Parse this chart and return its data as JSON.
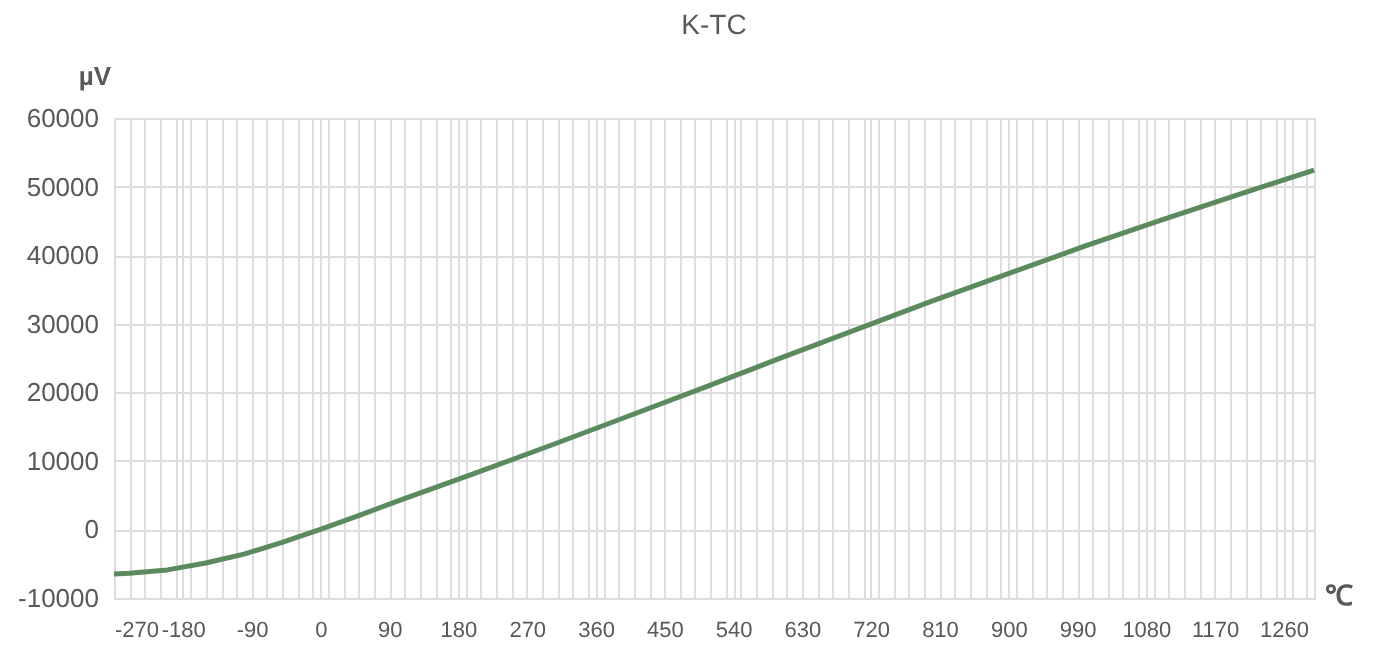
{
  "chart_data": {
    "type": "line",
    "title": "K-TC",
    "xlabel": "℃",
    "ylabel": "µV",
    "x": [
      -270,
      -250,
      -200,
      -150,
      -100,
      -50,
      0,
      50,
      100,
      150,
      200,
      300,
      400,
      500,
      600,
      700,
      800,
      900,
      1000,
      1100,
      1200,
      1300
    ],
    "series": [
      {
        "color": "#5a8a5e",
        "values": [
          -6500,
          -6400,
          -5900,
          -4900,
          -3600,
          -1900,
          0,
          2000,
          4100,
          6100,
          8100,
          12200,
          16400,
          20600,
          24900,
          29100,
          33300,
          37300,
          41300,
          45100,
          48800,
          52400
        ]
      }
    ],
    "xlim": [
      -270,
      1300
    ],
    "xticks": [
      -270,
      {
        "value": -250,
        "label": null
      },
      {
        "value": -230,
        "label": null
      },
      {
        "value": -210,
        "label": null
      },
      {
        "value": -190,
        "label": null
      },
      -180,
      {
        "value": -170,
        "label": null
      },
      {
        "value": -150,
        "label": null
      },
      {
        "value": -130,
        "label": null
      },
      {
        "value": -110,
        "label": null
      },
      -90,
      {
        "value": -70,
        "label": null
      },
      {
        "value": -50,
        "label": null
      },
      {
        "value": -30,
        "label": null
      },
      {
        "value": -10,
        "label": null
      },
      0,
      {
        "value": 10,
        "label": null
      },
      {
        "value": 30,
        "label": null
      },
      {
        "value": 50,
        "label": null
      },
      {
        "value": 70,
        "label": null
      },
      90,
      {
        "value": 110,
        "label": null
      },
      {
        "value": 130,
        "label": null
      },
      {
        "value": 150,
        "label": null
      },
      {
        "value": 170,
        "label": null
      },
      180,
      {
        "value": 190,
        "label": null
      },
      {
        "value": 210,
        "label": null
      },
      {
        "value": 230,
        "label": null
      },
      {
        "value": 250,
        "label": null
      },
      270,
      {
        "value": 290,
        "label": null
      },
      {
        "value": 310,
        "label": null
      },
      {
        "value": 330,
        "label": null
      },
      {
        "value": 350,
        "label": null
      },
      360,
      {
        "value": 370,
        "label": null
      },
      {
        "value": 390,
        "label": null
      },
      {
        "value": 410,
        "label": null
      },
      {
        "value": 430,
        "label": null
      },
      450,
      {
        "value": 470,
        "label": null
      },
      {
        "value": 490,
        "label": null
      },
      {
        "value": 510,
        "label": null
      },
      {
        "value": 530,
        "label": null
      },
      540,
      {
        "value": 550,
        "label": null
      },
      {
        "value": 570,
        "label": null
      },
      {
        "value": 590,
        "label": null
      },
      {
        "value": 610,
        "label": null
      },
      630,
      {
        "value": 650,
        "label": null
      },
      {
        "value": 670,
        "label": null
      },
      {
        "value": 690,
        "label": null
      },
      {
        "value": 710,
        "label": null
      },
      720,
      {
        "value": 730,
        "label": null
      },
      {
        "value": 750,
        "label": null
      },
      {
        "value": 770,
        "label": null
      },
      {
        "value": 790,
        "label": null
      },
      810,
      {
        "value": 830,
        "label": null
      },
      {
        "value": 850,
        "label": null
      },
      {
        "value": 870,
        "label": null
      },
      {
        "value": 890,
        "label": null
      },
      900,
      {
        "value": 910,
        "label": null
      },
      {
        "value": 930,
        "label": null
      },
      {
        "value": 950,
        "label": null
      },
      {
        "value": 970,
        "label": null
      },
      990,
      {
        "value": 1010,
        "label": null
      },
      {
        "value": 1030,
        "label": null
      },
      {
        "value": 1050,
        "label": null
      },
      {
        "value": 1070,
        "label": null
      },
      1080,
      {
        "value": 1090,
        "label": null
      },
      {
        "value": 1110,
        "label": null
      },
      {
        "value": 1130,
        "label": null
      },
      {
        "value": 1150,
        "label": null
      },
      1170,
      {
        "value": 1190,
        "label": null
      },
      {
        "value": 1210,
        "label": null
      },
      {
        "value": 1230,
        "label": null
      },
      {
        "value": 1250,
        "label": null
      },
      1260,
      {
        "value": 1270,
        "label": null
      },
      {
        "value": 1290,
        "label": null
      }
    ],
    "ylim": [
      -10000,
      60000
    ],
    "yticks": [
      -10000,
      0,
      10000,
      20000,
      30000,
      40000,
      50000,
      60000
    ],
    "grid": true,
    "marker": "none",
    "line_style": "solid"
  }
}
